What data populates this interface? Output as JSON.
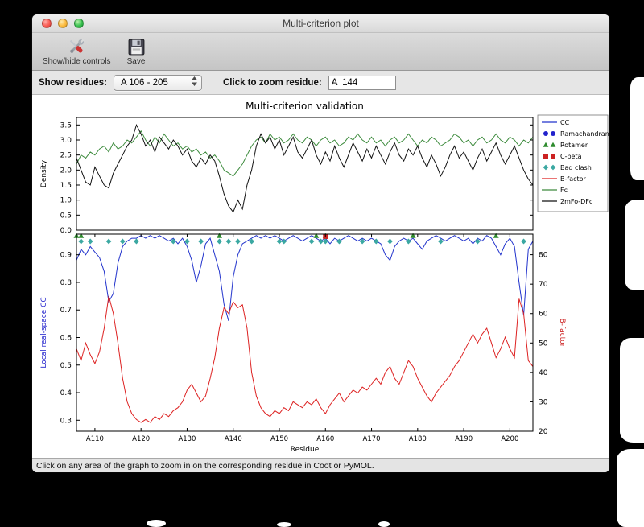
{
  "window": {
    "title": "Multi-criterion plot",
    "toolbar": {
      "items": [
        {
          "label": "Show/hide controls",
          "icon": "tools-icon"
        },
        {
          "label": "Save",
          "icon": "save-icon"
        }
      ]
    },
    "controls": {
      "show_residues_label": "Show residues:",
      "residue_range_value": "A 106 - 205",
      "zoom_residue_label": "Click to zoom residue:",
      "zoom_residue_value": "A  144"
    },
    "status_bar": "Click on any area of the graph to zoom in on the corresponding residue in Coot or PyMOL."
  },
  "chart_data": {
    "type": "line",
    "title": "Multi-criterion validation",
    "xlabel": "Residue",
    "x_start": 106,
    "x_end": 205,
    "x_ticks": [
      {
        "value": 110,
        "label": "A110"
      },
      {
        "value": 120,
        "label": "A120"
      },
      {
        "value": 130,
        "label": "A130"
      },
      {
        "value": 140,
        "label": "A140"
      },
      {
        "value": 150,
        "label": "A150"
      },
      {
        "value": 160,
        "label": "A160"
      },
      {
        "value": 170,
        "label": "A170"
      },
      {
        "value": 180,
        "label": "A180"
      },
      {
        "value": 190,
        "label": "A190"
      },
      {
        "value": 200,
        "label": "A200"
      }
    ],
    "top_panel": {
      "ylabel": "Density",
      "ylim": [
        0,
        3.75
      ],
      "yticks": [
        0.0,
        0.5,
        1.0,
        1.5,
        2.0,
        2.5,
        3.0,
        3.5
      ],
      "series": [
        {
          "name": "Fc",
          "color": "#3d8b3d",
          "values": [
            2.2,
            2.5,
            2.4,
            2.6,
            2.5,
            2.7,
            2.8,
            2.6,
            2.9,
            2.7,
            2.8,
            3.0,
            2.9,
            3.1,
            3.3,
            3.0,
            2.8,
            3.1,
            2.9,
            3.2,
            3.0,
            2.8,
            2.9,
            2.7,
            2.8,
            2.6,
            2.7,
            2.5,
            2.6,
            2.4,
            2.5,
            2.3,
            2.0,
            1.9,
            1.8,
            2.0,
            2.2,
            2.5,
            2.8,
            3.0,
            3.1,
            2.9,
            3.2,
            3.0,
            3.1,
            2.9,
            3.0,
            3.2,
            3.0,
            2.9,
            3.1,
            3.0,
            2.8,
            3.0,
            3.1,
            2.9,
            3.0,
            2.8,
            2.9,
            3.1,
            3.0,
            3.2,
            3.0,
            2.9,
            3.1,
            2.9,
            3.0,
            2.8,
            3.0,
            3.1,
            2.9,
            3.0,
            3.2,
            3.0,
            2.8,
            3.0,
            2.9,
            3.1,
            3.0,
            2.8,
            2.9,
            3.0,
            3.2,
            3.1,
            2.9,
            3.0,
            2.8,
            3.0,
            3.1,
            2.9,
            3.0,
            3.2,
            3.0,
            2.9,
            3.1,
            3.0,
            2.8,
            3.0,
            2.9,
            3.1
          ]
        },
        {
          "name": "2mFo-DFc",
          "color": "#111111",
          "values": [
            2.4,
            2.0,
            1.6,
            1.5,
            2.1,
            1.8,
            1.5,
            1.4,
            1.9,
            2.2,
            2.5,
            2.8,
            3.0,
            3.5,
            3.2,
            2.8,
            3.0,
            2.6,
            3.1,
            2.9,
            2.7,
            3.0,
            2.8,
            2.5,
            2.7,
            2.3,
            2.1,
            2.4,
            2.2,
            2.5,
            2.3,
            1.8,
            1.2,
            0.8,
            0.6,
            1.0,
            0.7,
            1.5,
            2.0,
            2.8,
            3.2,
            2.9,
            3.1,
            2.7,
            3.0,
            2.5,
            2.8,
            3.1,
            2.6,
            2.4,
            2.7,
            3.0,
            2.5,
            2.2,
            2.6,
            2.3,
            2.8,
            2.4,
            2.1,
            2.5,
            2.9,
            2.6,
            2.3,
            2.7,
            2.4,
            2.8,
            2.5,
            2.2,
            2.6,
            2.9,
            2.5,
            2.3,
            2.7,
            2.5,
            2.8,
            2.4,
            2.1,
            2.5,
            2.2,
            1.8,
            2.1,
            2.5,
            2.8,
            2.4,
            2.6,
            2.3,
            2.0,
            2.4,
            2.7,
            2.3,
            2.6,
            2.9,
            2.5,
            2.2,
            2.5,
            2.8,
            2.4,
            2.0,
            1.7,
            1.5
          ]
        }
      ]
    },
    "bottom_panel": {
      "ylabel_left": "Local real-space CC",
      "ylabel_left_color": "#2222cc",
      "ylim_left": [
        0.26,
        0.975
      ],
      "yticks_left": [
        0.3,
        0.4,
        0.5,
        0.6,
        0.7,
        0.8,
        0.9
      ],
      "ylabel_right": "B-factor",
      "ylabel_right_color": "#cc2222",
      "ylim_right": [
        20,
        87
      ],
      "yticks_right": [
        20,
        30,
        40,
        50,
        60,
        70,
        80
      ],
      "series": [
        {
          "name": "CC",
          "axis": "left",
          "color": "#2233cc",
          "values": [
            0.88,
            0.92,
            0.9,
            0.93,
            0.91,
            0.89,
            0.84,
            0.73,
            0.76,
            0.87,
            0.93,
            0.95,
            0.96,
            0.96,
            0.97,
            0.96,
            0.97,
            0.96,
            0.97,
            0.96,
            0.95,
            0.96,
            0.94,
            0.96,
            0.93,
            0.88,
            0.8,
            0.86,
            0.94,
            0.96,
            0.9,
            0.84,
            0.72,
            0.66,
            0.82,
            0.9,
            0.94,
            0.95,
            0.96,
            0.97,
            0.96,
            0.97,
            0.96,
            0.97,
            0.96,
            0.95,
            0.96,
            0.97,
            0.96,
            0.95,
            0.96,
            0.97,
            0.96,
            0.95,
            0.96,
            0.94,
            0.96,
            0.95,
            0.96,
            0.97,
            0.96,
            0.95,
            0.96,
            0.95,
            0.96,
            0.95,
            0.94,
            0.9,
            0.88,
            0.93,
            0.95,
            0.96,
            0.95,
            0.96,
            0.94,
            0.92,
            0.95,
            0.96,
            0.97,
            0.96,
            0.95,
            0.96,
            0.97,
            0.96,
            0.95,
            0.96,
            0.94,
            0.96,
            0.95,
            0.97,
            0.96,
            0.93,
            0.9,
            0.94,
            0.96,
            0.93,
            0.8,
            0.68,
            0.92,
            0.95
          ]
        },
        {
          "name": "B-factor",
          "axis": "right",
          "color": "#dd2222",
          "values": [
            48,
            44,
            50,
            46,
            43,
            47,
            55,
            66,
            60,
            50,
            38,
            30,
            26,
            24,
            23,
            24,
            23,
            25,
            24,
            26,
            25,
            27,
            28,
            30,
            34,
            36,
            33,
            30,
            32,
            38,
            45,
            55,
            62,
            60,
            64,
            62,
            63,
            55,
            40,
            32,
            28,
            26,
            25,
            27,
            26,
            28,
            27,
            30,
            29,
            28,
            30,
            29,
            31,
            28,
            26,
            29,
            31,
            33,
            30,
            32,
            34,
            33,
            35,
            34,
            36,
            38,
            36,
            40,
            42,
            38,
            36,
            40,
            44,
            42,
            38,
            35,
            32,
            30,
            33,
            35,
            37,
            39,
            42,
            44,
            47,
            50,
            53,
            50,
            53,
            55,
            50,
            45,
            48,
            52,
            48,
            45,
            65,
            60,
            44,
            42
          ]
        }
      ],
      "markers": [
        {
          "name": "Rotamer",
          "shape": "triangle",
          "color": "#2e8b2e",
          "offset": 2,
          "residues": [
            106,
            107,
            137,
            158,
            160,
            179,
            197
          ]
        },
        {
          "name": "C-beta",
          "shape": "square",
          "color": "#cc2222",
          "offset": 3,
          "residues": [
            160
          ]
        },
        {
          "name": "Bad clash",
          "shape": "diamond",
          "color": "#3ba8a2",
          "offset": 9,
          "residues": [
            107,
            109,
            113,
            116,
            119,
            127,
            130,
            133,
            137,
            139,
            141,
            144,
            150,
            151,
            157,
            159,
            160,
            163,
            168,
            171,
            174,
            178,
            185,
            193,
            203
          ]
        },
        {
          "name": "Ramachandran",
          "shape": "circle",
          "color": "#2222cc",
          "offset": 9,
          "residues": []
        }
      ]
    },
    "legend": [
      {
        "label": "CC",
        "type": "line",
        "color": "#2233cc"
      },
      {
        "label": "Ramachandran",
        "type": "pair-circle",
        "color": "#2222cc"
      },
      {
        "label": "Rotamer",
        "type": "pair-triangle",
        "color": "#2e8b2e"
      },
      {
        "label": "C-beta",
        "type": "pair-square",
        "color": "#cc2222"
      },
      {
        "label": "Bad clash",
        "type": "pair-diamond",
        "color": "#3ba8a2"
      },
      {
        "label": "B-factor",
        "type": "line",
        "color": "#dd2222"
      },
      {
        "label": "Fc",
        "type": "line",
        "color": "#3d8b3d"
      },
      {
        "label": "2mFo-DFc",
        "type": "line",
        "color": "#111111"
      }
    ]
  }
}
